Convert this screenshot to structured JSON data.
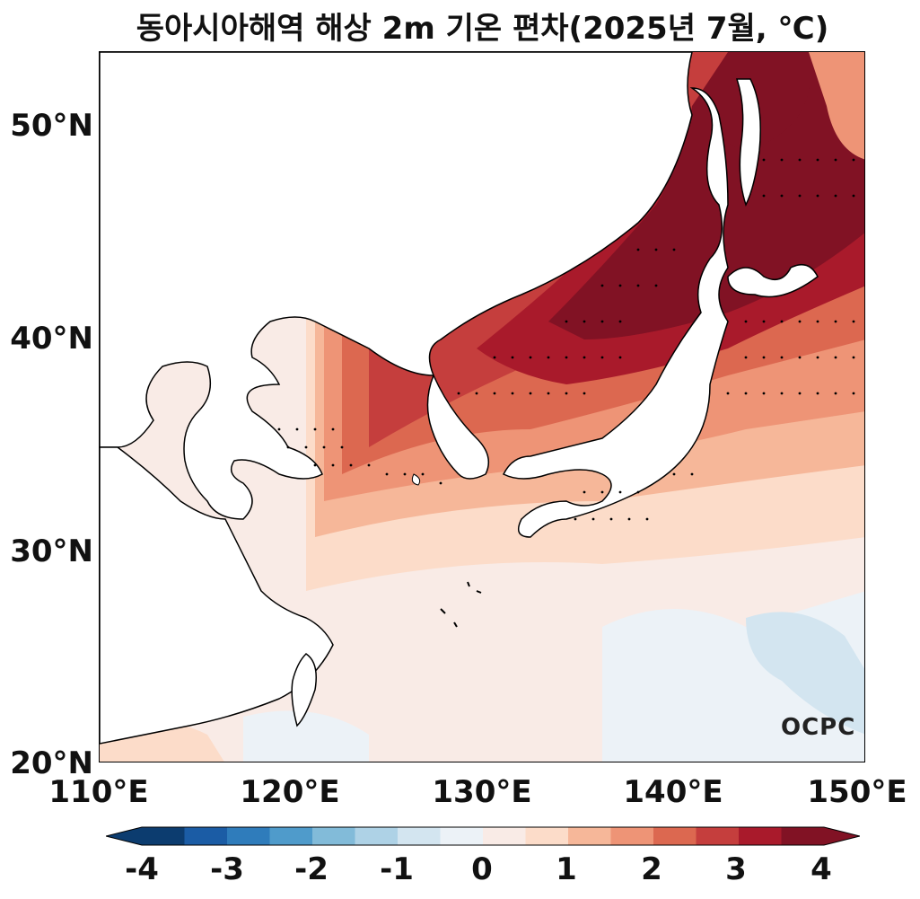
{
  "title": "동아시아해역 해상 2m 기온 편차(2025년 7월, ℃)",
  "map": {
    "lat_labels": [
      "50°N",
      "40°N",
      "30°N",
      "20°N"
    ],
    "lon_labels": [
      "110°E",
      "120°E",
      "130°E",
      "140°E",
      "150°E"
    ],
    "lat_range": [
      20,
      53.5
    ],
    "lon_range": [
      110,
      150
    ],
    "stippling": "statistically significant areas marked with dots"
  },
  "colorbar": {
    "labels": [
      "-4",
      "-3",
      "-2",
      "-1",
      "0",
      "1",
      "2",
      "3",
      "4"
    ],
    "colors": [
      "#0c3c6f",
      "#1b5ca5",
      "#2f7cbb",
      "#4f9bcb",
      "#82bbd9",
      "#aed2e6",
      "#d3e5f0",
      "#ecf2f7",
      "#f9ebe6",
      "#fcdcc9",
      "#f6b799",
      "#ee9476",
      "#dc6850",
      "#c53e3d",
      "#a91a2b",
      "#811224"
    ],
    "extend": "both"
  },
  "logo": "OCPC"
}
